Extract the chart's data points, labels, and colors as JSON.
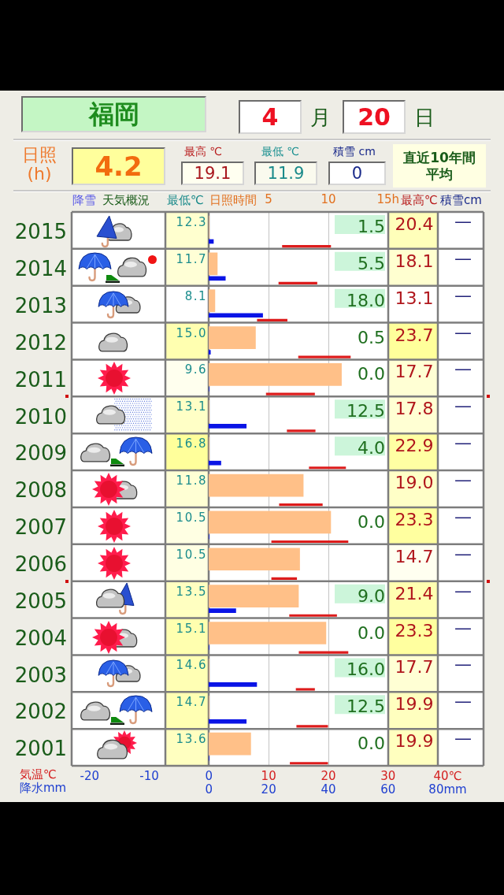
{
  "chart_data": [
    {
      "type": "other",
      "title": "福岡",
      "annotations": [
        "4",
        "月",
        "20",
        "日",
        "日照(h)",
        "4.2",
        "最高 ℃",
        "19.1",
        "最低 ℃",
        "11.9",
        "積雪 cm",
        "0",
        "直近10年間平均"
      ]
    },
    {
      "type": "bar",
      "orientation": "horizontal",
      "categories": [
        "2015",
        "2014",
        "2013",
        "2012",
        "2011",
        "2010",
        "2009",
        "2008",
        "2007",
        "2006",
        "2005",
        "2004",
        "2003",
        "2002",
        "2001"
      ],
      "xlabel": "気温℃",
      "xlim": [
        -23,
        46
      ],
      "xticks": [
        -20,
        -10,
        0,
        10,
        20,
        30,
        {
          "value": 40,
          "label": "40℃"
        }
      ],
      "x2label": "日照時間",
      "x2lim": [
        -11.5,
        23
      ],
      "x2ticks": [
        5,
        10,
        {
          "value": 15,
          "label": "15h"
        }
      ],
      "grid": "x",
      "annotations": [
        "降雪",
        "天気概況",
        "最低℃",
        "最高℃",
        "積雪cm"
      ],
      "series": [
        {
          "type": "bar",
          "axis": "x2",
          "color": "#ffc088",
          "values": [
            0,
            0.7,
            0.5,
            3.9,
            11.1,
            0,
            0,
            7.9,
            10.2,
            7.6,
            7.5,
            9.8,
            0,
            0,
            3.5
          ]
        },
        {
          "type": "bar",
          "color": "#dd1c1c",
          "base": [
            12.3,
            11.7,
            8.1,
            15.0,
            9.6,
            13.1,
            16.8,
            11.8,
            10.5,
            10.5,
            13.5,
            15.1,
            14.6,
            14.7,
            13.6
          ],
          "values": [
            8.1,
            6.4,
            5.0,
            8.7,
            8.1,
            4.7,
            6.1,
            7.2,
            12.8,
            4.2,
            7.9,
            8.2,
            3.1,
            5.2,
            6.3
          ]
        },
        {
          "type": "bar",
          "values": [
            null,
            null,
            null,
            null,
            null,
            null,
            null,
            null,
            null,
            null,
            null,
            null,
            null,
            null,
            null
          ],
          "value_labels": [
            "12.3",
            "11.7",
            "8.1",
            "15.0",
            "9.6",
            "13.1",
            "16.8",
            "11.8",
            "10.5",
            "10.5",
            "13.5",
            "15.1",
            "14.6",
            "14.7",
            "13.6"
          ]
        },
        {
          "type": "bar",
          "values": [
            null,
            null,
            null,
            null,
            null,
            null,
            null,
            null,
            null,
            null,
            null,
            null,
            null,
            null,
            null
          ],
          "value_labels": [
            "20.4",
            "18.1",
            "13.1",
            "23.7",
            "17.7",
            "17.8",
            "22.9",
            "19.0",
            "23.3",
            "14.7",
            "21.4",
            "23.3",
            "17.7",
            "19.9",
            "19.9"
          ]
        },
        {
          "type": "bar",
          "values": [
            null,
            null,
            null,
            null,
            null,
            null,
            null,
            null,
            null,
            null,
            null,
            null,
            null,
            null,
            null
          ],
          "value_labels": [
            "—",
            "—",
            "—",
            "—",
            "—",
            "—",
            "—",
            "—",
            "—",
            "—",
            "—",
            "—",
            "—",
            "—",
            "—"
          ]
        }
      ]
    },
    {
      "type": "bar",
      "orientation": "horizontal",
      "categories": [
        "2015",
        "2014",
        "2013",
        "2012",
        "2011",
        "2010",
        "2009",
        "2008",
        "2007",
        "2006",
        "2005",
        "2004",
        "2003",
        "2002",
        "2001"
      ],
      "tick_labels": "x",
      "xlabel": "降水mm",
      "xlim": [
        -46,
        92
      ],
      "xticks": [
        0,
        20,
        40,
        60,
        {
          "value": 80,
          "label": "80mm"
        }
      ],
      "series": [
        {
          "type": "bar",
          "color": "#0a14e6",
          "values": [
            1.5,
            5.5,
            18.0,
            0.5,
            0.0,
            12.5,
            4.0,
            null,
            0.0,
            null,
            9.0,
            0.0,
            16.0,
            12.5,
            0.0
          ],
          "value_labels": [
            "1.5",
            "5.5",
            "18.0",
            "0.5",
            "0.0",
            "12.5",
            "4.0",
            null,
            "0.0",
            null,
            "9.0",
            "0.0",
            "16.0",
            "12.5",
            "0.0"
          ]
        }
      ]
    }
  ]
}
